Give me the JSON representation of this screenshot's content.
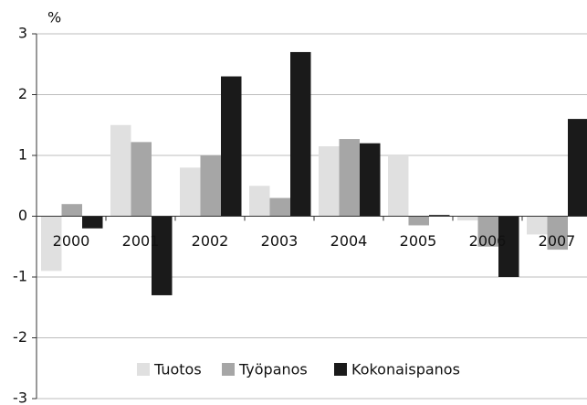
{
  "chart_data": {
    "type": "bar",
    "y_label": "%",
    "categories": [
      "2000",
      "2001",
      "2002",
      "2003",
      "2004",
      "2005",
      "2006",
      "2007"
    ],
    "series": [
      {
        "name": "Tuotos",
        "color": "#e0e0e0",
        "values": [
          -0.9,
          1.5,
          0.8,
          0.5,
          1.15,
          1.0,
          -0.07,
          -0.3
        ]
      },
      {
        "name": "Työpanos",
        "color": "#a6a6a6",
        "values": [
          0.2,
          1.22,
          1.0,
          0.3,
          1.27,
          -0.15,
          -0.5,
          -0.55
        ]
      },
      {
        "name": "Kokonaispanos",
        "color": "#1a1a1a",
        "values": [
          -0.2,
          -1.3,
          2.3,
          2.7,
          1.2,
          0.02,
          -1.0,
          1.6
        ]
      }
    ],
    "ylim": [
      -3,
      3
    ],
    "yticks": [
      -3,
      -2,
      -1,
      0,
      1,
      2,
      3
    ],
    "grid": true,
    "legend": "bottom"
  }
}
